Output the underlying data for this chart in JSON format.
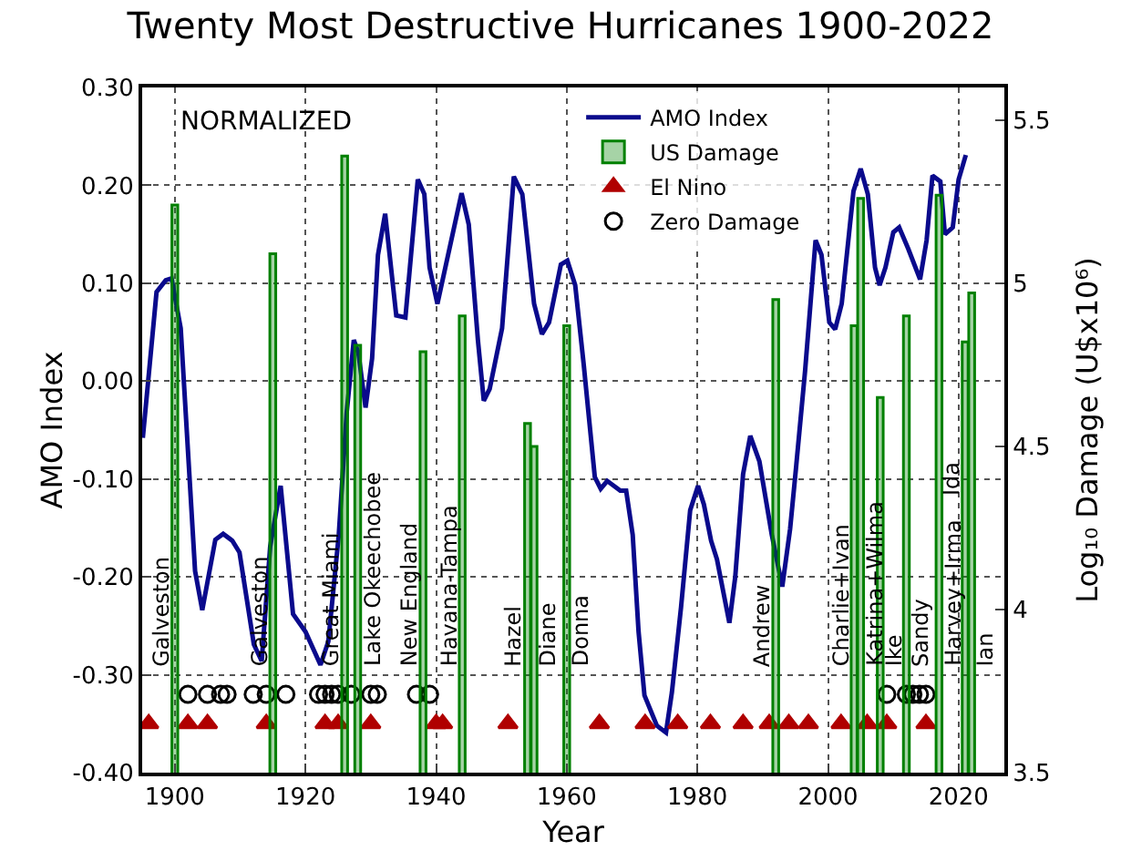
{
  "chart_data": {
    "type": "line",
    "title": "Twenty Most Destructive Hurricanes 1900-2022",
    "xlabel": "Year",
    "ylabel": "AMO Index",
    "y2label": "Log₁₀ Damage (U$x10⁶)",
    "xlim": [
      1895,
      2027
    ],
    "xticks": [
      1900,
      1920,
      1940,
      1960,
      1980,
      2000,
      2020
    ],
    "ylim": [
      -0.4,
      0.3
    ],
    "yticks": [
      {
        "value": -0.4,
        "label": "-0.40"
      },
      {
        "value": -0.3,
        "label": "-0.30"
      },
      {
        "value": -0.2,
        "label": "-0.20"
      },
      {
        "value": -0.1,
        "label": "-0.10"
      },
      {
        "value": 0,
        "label": "0.00"
      },
      {
        "value": 0.1,
        "label": "0.10"
      },
      {
        "value": 0.2,
        "label": "0.20"
      },
      {
        "value": 0.3,
        "label": "0.30"
      }
    ],
    "y2lim": [
      3.5,
      5.6
    ],
    "y2ticks": [
      3.5,
      4,
      4.5,
      5,
      5.5
    ],
    "grid": true,
    "legend": "top right",
    "series": [
      {
        "name": "AMO Index",
        "color": "#0a0a8c",
        "line_style": "solid",
        "marker": "none",
        "x": [
          1895.1,
          1897.2,
          1898.6,
          1899.5,
          1900.9,
          1903.1,
          1904.2,
          1906.2,
          1907.4,
          1908.8,
          1909.9,
          1912.1,
          1913.3,
          1914.6,
          1916.2,
          1918.1,
          1920.0,
          1922.3,
          1923.5,
          1925.1,
          1926.3,
          1927.4,
          1928.1,
          1929.2,
          1930.2,
          1931.1,
          1932.2,
          1933.9,
          1935.3,
          1937.2,
          1938.2,
          1939.0,
          1940.2,
          1943.9,
          1945.0,
          1946.4,
          1947.3,
          1948.2,
          1950.1,
          1951.9,
          1953.2,
          1955.0,
          1956.2,
          1957.3,
          1959.1,
          1960.1,
          1961.3,
          1962.6,
          1964.3,
          1965.2,
          1966.2,
          1968.2,
          1969.1,
          1970.1,
          1971.0,
          1971.9,
          1973.8,
          1975.2,
          1976.1,
          1977.5,
          1978.9,
          1980.1,
          1981.0,
          1982.1,
          1983.0,
          1984.9,
          1985.8,
          1987.0,
          1988.1,
          1989.5,
          1991.4,
          1993.0,
          1994.2,
          1995.1,
          1996.5,
          1998.1,
          1999.0,
          2000.2,
          2001.1,
          2002.1,
          2003.9,
          2005.0,
          2006.1,
          2007.2,
          2007.9,
          2008.8,
          2010.0,
          2010.9,
          2012.3,
          2014.1,
          2015.1,
          2016.0,
          2017.2,
          2017.9,
          2019.1,
          2020.0,
          2021.1
        ],
        "values": [
          -0.058,
          0.091,
          0.103,
          0.105,
          0.054,
          -0.194,
          -0.234,
          -0.162,
          -0.156,
          -0.163,
          -0.175,
          -0.269,
          -0.286,
          -0.169,
          -0.107,
          -0.238,
          -0.256,
          -0.29,
          -0.266,
          -0.157,
          -0.033,
          0.042,
          0.029,
          -0.027,
          0.023,
          0.129,
          0.171,
          0.067,
          0.065,
          0.206,
          0.191,
          0.116,
          0.079,
          0.192,
          0.16,
          0.042,
          -0.02,
          -0.008,
          0.054,
          0.209,
          0.191,
          0.079,
          0.048,
          0.06,
          0.119,
          0.123,
          0.098,
          0.017,
          -0.098,
          -0.11,
          -0.102,
          -0.112,
          -0.112,
          -0.157,
          -0.256,
          -0.321,
          -0.352,
          -0.359,
          -0.318,
          -0.231,
          -0.132,
          -0.107,
          -0.126,
          -0.163,
          -0.182,
          -0.247,
          -0.2,
          -0.095,
          -0.056,
          -0.082,
          -0.157,
          -0.21,
          -0.151,
          -0.089,
          0.011,
          0.144,
          0.129,
          0.06,
          0.053,
          0.079,
          0.194,
          0.217,
          0.191,
          0.116,
          0.098,
          0.116,
          0.152,
          0.157,
          0.135,
          0.104,
          0.144,
          0.21,
          0.204,
          0.15,
          0.157,
          0.206,
          0.231
        ]
      },
      {
        "name": "US Damage",
        "type": "bar",
        "axis": "y2",
        "color": "#008000",
        "x": [
          1900,
          1915,
          1926,
          1928,
          1938,
          1944,
          1954,
          1955,
          1960,
          1992,
          2004,
          2005,
          2008,
          2012,
          2017,
          2021,
          2022
        ],
        "values": [
          5.24,
          5.09,
          5.39,
          4.81,
          4.79,
          4.9,
          4.57,
          4.5,
          4.87,
          4.95,
          4.87,
          5.26,
          4.65,
          4.9,
          5.27,
          4.82,
          4.97
        ],
        "value_labels": [
          "Galveston",
          "Galveston",
          "Great Miami",
          "Lake Okeechobee",
          "New England",
          "Havana-Tampa",
          "Hazel",
          "Diane",
          "Donna",
          "Andrew",
          "Charlie+Ivan",
          "Katrina+Wilma",
          "Ike",
          "Sandy",
          "Harvey+Irma",
          "Ida",
          "Ian"
        ]
      },
      {
        "name": "El Nino",
        "type": "scatter",
        "color": "#b00000",
        "marker": "triangle",
        "x": [
          1896,
          1902,
          1905,
          1914,
          1923,
          1925,
          1930,
          1940,
          1941,
          1951,
          1965,
          1972,
          1977,
          1982,
          1987,
          1991,
          1994,
          1997,
          2002,
          2006,
          2009,
          2015
        ],
        "values": [
          -0.35,
          -0.35,
          -0.35,
          -0.35,
          -0.35,
          -0.35,
          -0.35,
          -0.35,
          -0.35,
          -0.35,
          -0.35,
          -0.35,
          -0.35,
          -0.35,
          -0.35,
          -0.35,
          -0.35,
          -0.35,
          -0.35,
          -0.35,
          -0.35,
          -0.35
        ]
      },
      {
        "name": "Zero Damage",
        "type": "scatter",
        "color": "#000000",
        "marker": "circle",
        "x": [
          1902,
          1905,
          1907,
          1908,
          1912,
          1914,
          1917,
          1922,
          1923,
          1924,
          1925,
          1927,
          1930,
          1931,
          1937,
          1939,
          2009,
          2012,
          2013,
          2014,
          2015
        ],
        "values": [
          -0.32,
          -0.32,
          -0.32,
          -0.32,
          -0.32,
          -0.32,
          -0.32,
          -0.32,
          -0.32,
          -0.32,
          -0.32,
          -0.32,
          -0.32,
          -0.32,
          -0.32,
          -0.32,
          -0.32,
          -0.32,
          -0.32,
          -0.32,
          -0.32
        ]
      }
    ],
    "annotations": [
      "NORMALIZED"
    ]
  }
}
